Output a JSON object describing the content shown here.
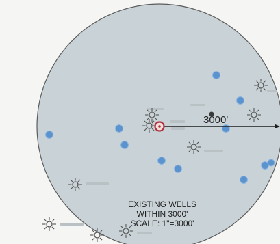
{
  "map": {
    "radius_label": "3000'",
    "legend": {
      "line1": "EXISTING WELLS",
      "line2": "WITHIN 3000'",
      "line3": "SCALE: 1\"=3000'"
    },
    "colors": {
      "circle_fill": "#c9d3d7",
      "circle_stroke": "#5b5b5b",
      "water_well": "#5b93cf",
      "subject_well": "#b0303a",
      "gas_well": "#555555"
    },
    "well_types": {
      "subject": "red-circle-icon",
      "water": "blue-dot-icon",
      "gas": "sun-symbol-icon",
      "active": "black-dot-icon"
    }
  }
}
